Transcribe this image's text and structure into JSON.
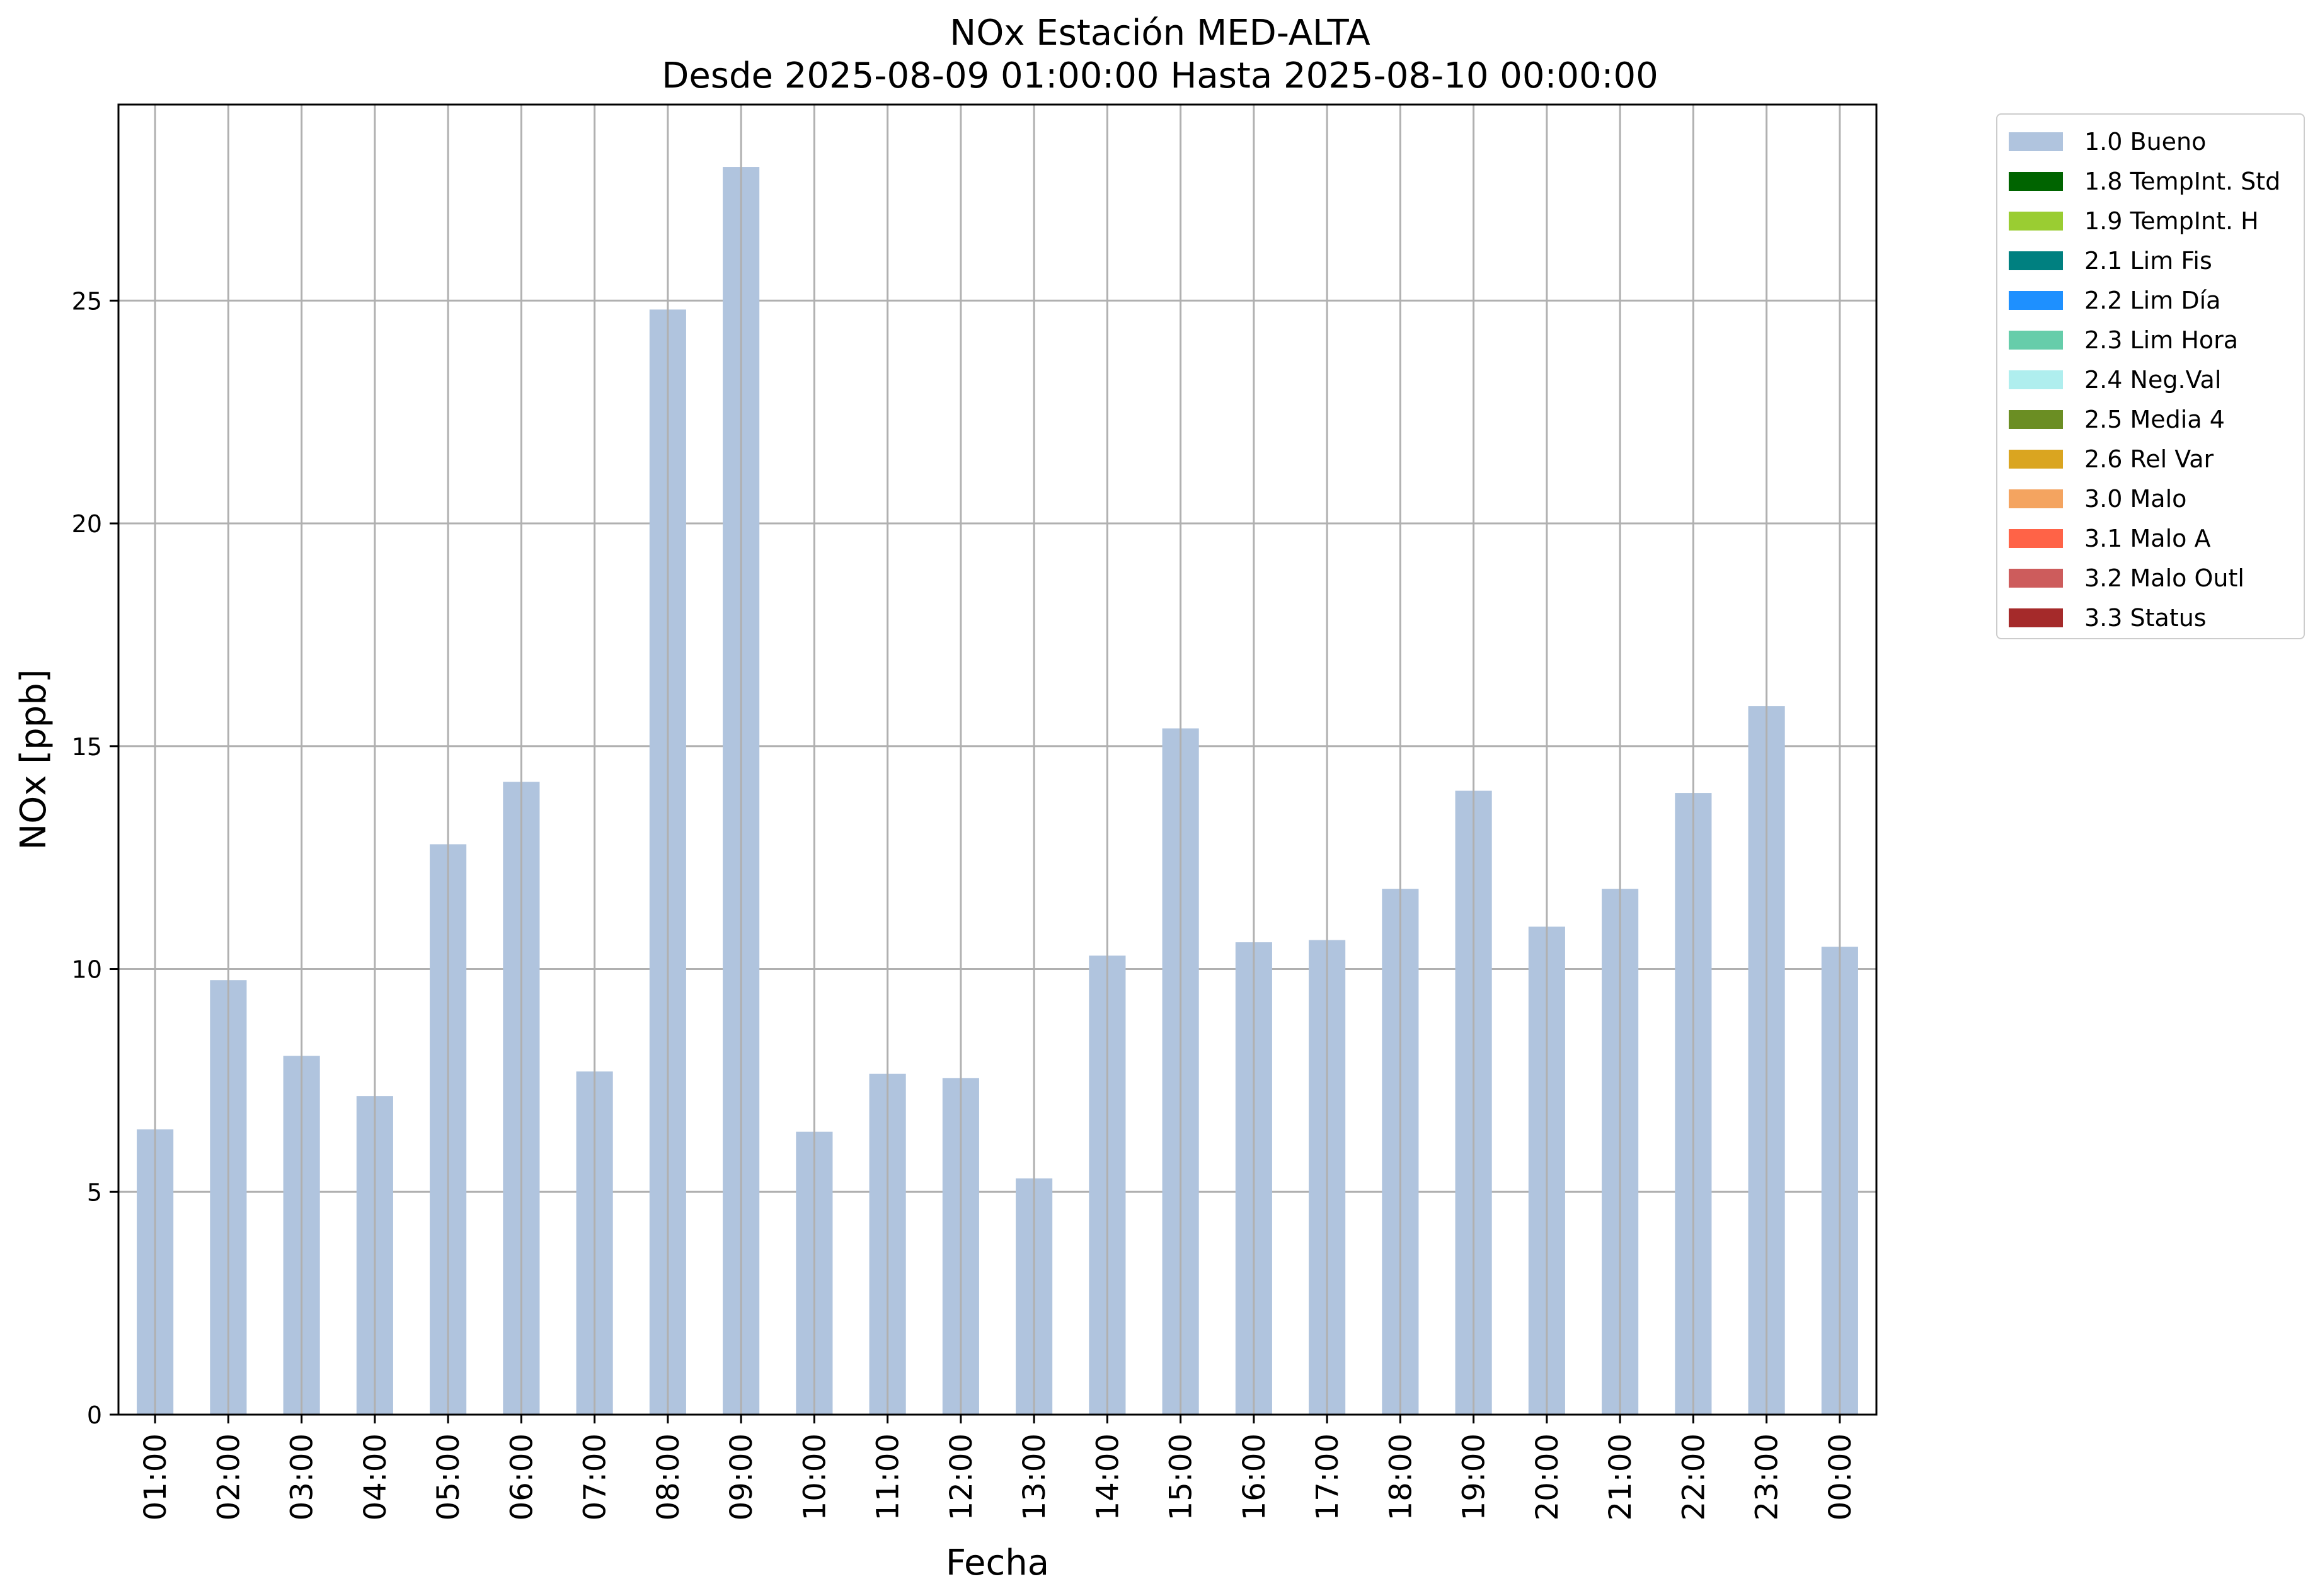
{
  "chart_data": {
    "type": "bar",
    "title": "NOx Estación MED-ALTA",
    "subtitle": "Desde 2025-08-09 01:00:00 Hasta 2025-08-10 00:00:00",
    "xlabel": "Fecha",
    "ylabel": "NOx [ppb]",
    "ylim": [
      0,
      29.4
    ],
    "yticks": [
      0,
      5,
      10,
      15,
      20,
      25
    ],
    "grid": true,
    "legend_position": "outside-top-right",
    "categories": [
      "01:00",
      "02:00",
      "03:00",
      "04:00",
      "05:00",
      "06:00",
      "07:00",
      "08:00",
      "09:00",
      "10:00",
      "11:00",
      "12:00",
      "13:00",
      "14:00",
      "15:00",
      "16:00",
      "17:00",
      "18:00",
      "19:00",
      "20:00",
      "21:00",
      "22:00",
      "23:00",
      "00:00"
    ],
    "series": [
      {
        "name": "1.0 Bueno",
        "color": "#b0c4de",
        "values": [
          6.4,
          9.75,
          8.05,
          7.15,
          12.8,
          14.2,
          7.7,
          24.8,
          28.0,
          6.35,
          7.65,
          7.55,
          5.3,
          10.3,
          15.4,
          10.6,
          10.65,
          11.8,
          14.0,
          10.95,
          11.8,
          13.95,
          15.9,
          10.5
        ]
      }
    ],
    "legend": [
      {
        "label": "1.0 Bueno",
        "color": "#b0c4de"
      },
      {
        "label": "1.8 TempInt. Std",
        "color": "#006400"
      },
      {
        "label": "1.9 TempInt. H",
        "color": "#9acd32"
      },
      {
        "label": "2.1 Lim Fis",
        "color": "#008080"
      },
      {
        "label": "2.2 Lim Día",
        "color": "#1e90ff"
      },
      {
        "label": "2.3 Lim Hora",
        "color": "#66cdaa"
      },
      {
        "label": "2.4 Neg.Val",
        "color": "#afeeee"
      },
      {
        "label": "2.5 Media 4",
        "color": "#6b8e23"
      },
      {
        "label": "2.6 Rel Var",
        "color": "#daa520"
      },
      {
        "label": "3.0 Malo",
        "color": "#f4a460"
      },
      {
        "label": "3.1 Malo A",
        "color": "#ff6347"
      },
      {
        "label": "3.2 Malo Outl",
        "color": "#cd5c5c"
      },
      {
        "label": "3.3 Status",
        "color": "#a52a2a"
      }
    ]
  }
}
